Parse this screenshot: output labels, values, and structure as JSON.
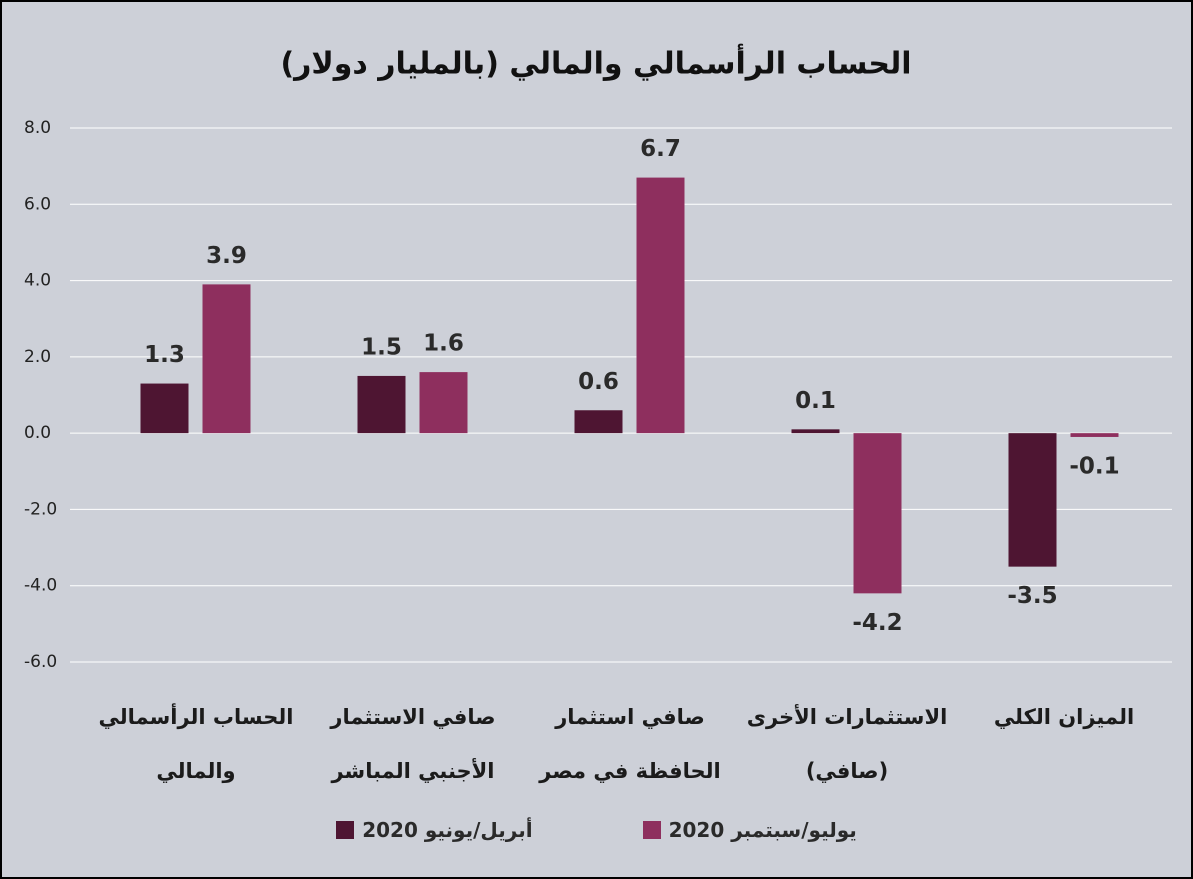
{
  "chart_data": {
    "type": "bar",
    "title": "الحساب الرأسمالي والمالي (بالمليار دولار)",
    "categories": [
      "الحساب الرأسمالي والمالي",
      "صافي الاستثمار الأجنبي المباشر",
      "صافي استثمار الحافظة في مصر",
      "الاستثمارات الأخرى (صافي)",
      "الميزان الكلي"
    ],
    "series": [
      {
        "name": "أبريل/يونيو 2020",
        "color": "#4e1532",
        "values": [
          1.3,
          1.5,
          0.6,
          0.1,
          -3.5
        ]
      },
      {
        "name": "يوليو/سبتمبر 2020",
        "color": "#8e2f5e",
        "values": [
          3.9,
          1.6,
          6.7,
          -4.2,
          -0.1
        ]
      }
    ],
    "ylim": [
      -6,
      8
    ],
    "yticks": [
      {
        "value": -6,
        "label": "-6.0"
      },
      {
        "value": -4,
        "label": "-4.0"
      },
      {
        "value": -2,
        "label": "-2.0"
      },
      {
        "value": 0,
        "label": "0.0"
      },
      {
        "value": 2,
        "label": "2.0"
      },
      {
        "value": 4,
        "label": "4.0"
      },
      {
        "value": 6,
        "label": "6.0"
      },
      {
        "value": 8,
        "label": "8.0"
      }
    ],
    "grid": true,
    "legend": "bottom"
  }
}
